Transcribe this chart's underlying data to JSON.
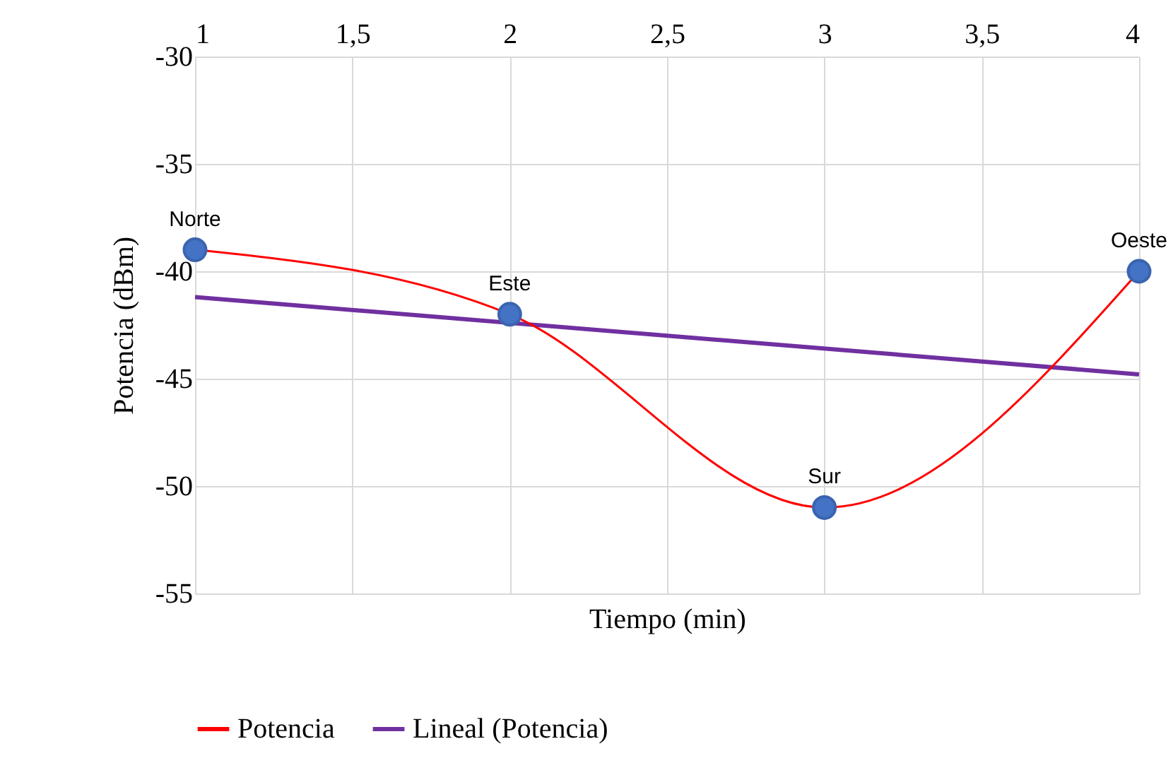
{
  "chart_data": {
    "type": "line",
    "xlabel": "Tiempo (min)",
    "ylabel": "Potencia (dBm)",
    "x": [
      1,
      2,
      3,
      4
    ],
    "series": [
      {
        "name": "Potencia",
        "color": "#ff0000",
        "marker": "circle",
        "values": [
          -39,
          -42,
          -51,
          -40
        ]
      },
      {
        "name": "Lineal (Potencia)",
        "color": "#7030a0",
        "marker": "none",
        "x": [
          1,
          4
        ],
        "values": [
          -41.2,
          -44.8
        ]
      }
    ],
    "annotations": [
      {
        "text": "Norte",
        "x": 1,
        "y": -39
      },
      {
        "text": "Este",
        "x": 2,
        "y": -42
      },
      {
        "text": "Sur",
        "x": 3,
        "y": -51
      },
      {
        "text": "Oeste",
        "x": 4,
        "y": -40
      }
    ],
    "xlim": [
      1,
      4
    ],
    "xticks": [
      1,
      {
        "value": 1.5,
        "label": "1,5"
      },
      2,
      {
        "value": 2.5,
        "label": "2,5"
      },
      3,
      {
        "value": 3.5,
        "label": "3,5"
      },
      4
    ],
    "ylim": [
      -55,
      -30
    ],
    "yticks": [
      -30,
      -35,
      -40,
      -45,
      -50,
      -55
    ],
    "grid": true,
    "legend": "bottom",
    "line_style": "solid"
  }
}
